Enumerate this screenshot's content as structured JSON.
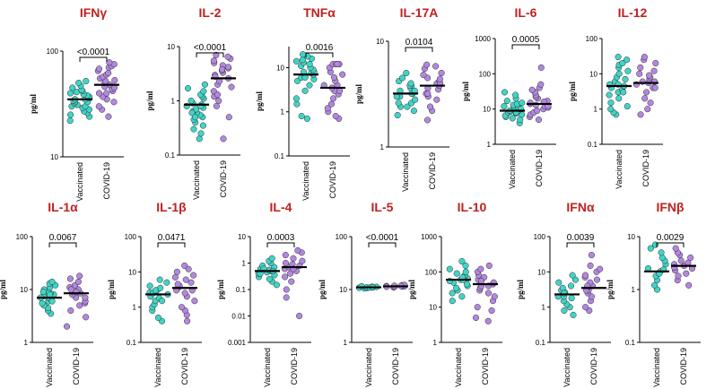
{
  "chart_data": [
    {
      "type": "scatter",
      "title": "IFNγ",
      "ylabel": "pg/ml",
      "scale": "log",
      "ylim": [
        10,
        100
      ],
      "yticks": [
        "10",
        "100"
      ],
      "categories": [
        "Vaccinated",
        "COVID-19"
      ],
      "pvalue": "<0.0001",
      "series": [
        {
          "name": "Vaccinated",
          "median": 35,
          "values": [
            22,
            24,
            25,
            26,
            27,
            28,
            29,
            30,
            30,
            31,
            32,
            33,
            33,
            34,
            35,
            35,
            36,
            37,
            38,
            39,
            40,
            41,
            42,
            43,
            45,
            47,
            50,
            52
          ]
        },
        {
          "name": "COVID-19",
          "median": 48,
          "values": [
            24,
            28,
            30,
            33,
            35,
            37,
            40,
            42,
            44,
            46,
            48,
            50,
            52,
            55,
            57,
            60,
            62,
            65,
            68,
            70,
            72,
            75,
            78,
            40,
            45,
            53
          ]
        }
      ]
    },
    {
      "type": "scatter",
      "title": "IL-2",
      "ylabel": "pg/ml",
      "scale": "log",
      "ylim": [
        0.1,
        10
      ],
      "yticks": [
        "0.1",
        "1",
        "10"
      ],
      "categories": [
        "Vaccinated",
        "COVID-19"
      ],
      "pvalue": "<0.0001",
      "series": [
        {
          "name": "Vaccinated",
          "median": 0.85,
          "values": [
            0.2,
            0.25,
            0.3,
            0.35,
            0.4,
            0.45,
            0.5,
            0.55,
            0.6,
            0.65,
            0.7,
            0.75,
            0.8,
            0.85,
            0.9,
            1.0,
            1.1,
            1.2,
            1.3,
            1.5,
            1.7,
            2.0,
            0.6,
            0.8,
            0.5
          ]
        },
        {
          "name": "COVID-19",
          "median": 2.6,
          "values": [
            0.2,
            0.5,
            0.8,
            1.0,
            1.2,
            1.5,
            1.8,
            2.0,
            2.3,
            2.6,
            3.0,
            3.3,
            3.6,
            4.0,
            4.5,
            5.0,
            5.5,
            6.0,
            6.5,
            7.0,
            1.3,
            2.8,
            3.8,
            4.2
          ]
        }
      ]
    },
    {
      "type": "scatter",
      "title": "TNFα",
      "ylabel": "pg/ml",
      "scale": "log",
      "ylim": [
        0.1,
        30
      ],
      "yticks": [
        "0.1",
        "1",
        "10"
      ],
      "categories": [
        "Vaccinated",
        "COVID-19"
      ],
      "pvalue": "0.0016",
      "series": [
        {
          "name": "Vaccinated",
          "median": 7,
          "values": [
            0.7,
            0.8,
            1.5,
            2,
            3,
            4,
            5,
            5.5,
            6,
            6.5,
            7,
            7.5,
            8,
            9,
            10,
            11,
            12,
            13,
            14,
            15,
            16,
            18,
            20,
            6,
            8
          ]
        },
        {
          "name": "COVID-19",
          "median": 3.5,
          "values": [
            0.7,
            0.8,
            1,
            1.2,
            1.5,
            2,
            2.5,
            3,
            3.5,
            4,
            5,
            6,
            7,
            8,
            10,
            12,
            12,
            12,
            12,
            3,
            4
          ]
        }
      ]
    },
    {
      "type": "scatter",
      "title": "IL-17A",
      "ylabel": "pg/ml",
      "scale": "log",
      "ylim": [
        1,
        10
      ],
      "yticks": [
        "1",
        "10"
      ],
      "categories": [
        "Vaccinated",
        "COVID-19"
      ],
      "pvalue": "0.0104",
      "series": [
        {
          "name": "Vaccinated",
          "median": 3.2,
          "values": [
            2.0,
            2.2,
            2.4,
            2.4,
            2.6,
            2.8,
            3.0,
            3.0,
            3.2,
            3.2,
            3.4,
            3.6,
            3.8,
            3.8,
            4.0,
            4.2,
            4.5,
            5.0,
            2.6,
            3.4
          ]
        },
        {
          "name": "COVID-19",
          "median": 3.8,
          "values": [
            1.8,
            2.2,
            2.4,
            2.8,
            3.0,
            3.2,
            3.5,
            3.6,
            3.8,
            4.0,
            4.2,
            4.5,
            4.8,
            5.0,
            5.5,
            5.8,
            6.0,
            3.2,
            4.0,
            4.4
          ]
        }
      ]
    },
    {
      "type": "scatter",
      "title": "IL-6",
      "ylabel": "pg/ml",
      "scale": "log",
      "ylim": [
        1,
        1000
      ],
      "yticks": [
        "1",
        "10",
        "100",
        "1000"
      ],
      "categories": [
        "Vaccinated",
        "COVID-19"
      ],
      "pvalue": "0.0005",
      "series": [
        {
          "name": "Vaccinated",
          "median": 9,
          "values": [
            4,
            5,
            5.5,
            6,
            6.5,
            7,
            7.5,
            8,
            8.5,
            9,
            9.5,
            10,
            11,
            12,
            13,
            14,
            15,
            17,
            20,
            25,
            30,
            9,
            8,
            10
          ]
        },
        {
          "name": "COVID-19",
          "median": 14,
          "values": [
            5,
            6,
            7,
            8,
            9,
            10,
            11,
            12,
            13,
            14,
            15,
            17,
            20,
            22,
            25,
            30,
            35,
            40,
            50,
            150,
            12,
            16
          ]
        }
      ]
    },
    {
      "type": "scatter",
      "title": "IL-12",
      "ylabel": "pg/ml",
      "scale": "log",
      "ylim": [
        0.1,
        100
      ],
      "yticks": [
        "0.1",
        "1",
        "10",
        "100"
      ],
      "categories": [
        "Vaccinated",
        "COVID-19"
      ],
      "pvalue": "",
      "series": [
        {
          "name": "Vaccinated",
          "median": 4.5,
          "values": [
            0.7,
            0.8,
            1,
            1.2,
            1.5,
            2,
            2.5,
            3,
            3.5,
            4,
            4.5,
            5,
            6,
            8,
            10,
            12,
            15,
            18,
            20,
            25,
            30,
            3,
            5,
            7
          ]
        },
        {
          "name": "COVID-19",
          "median": 5.5,
          "values": [
            0.7,
            1,
            1.5,
            2,
            3,
            4,
            5,
            5.5,
            6,
            7,
            8,
            10,
            12,
            15,
            20,
            25,
            30,
            4,
            6,
            9
          ]
        }
      ]
    },
    {
      "type": "scatter",
      "title": "IL-1α",
      "ylabel": "pg/ml",
      "scale": "log",
      "ylim": [
        1,
        100
      ],
      "yticks": [
        "1",
        "10",
        "100"
      ],
      "categories": [
        "Vaccinated",
        "COVID-19"
      ],
      "pvalue": "0.0067",
      "series": [
        {
          "name": "Vaccinated",
          "median": 7,
          "values": [
            3.5,
            4,
            4.5,
            5,
            5.5,
            6,
            6.5,
            7,
            7.5,
            8,
            8.5,
            9,
            10,
            11,
            12,
            13,
            14,
            6,
            7,
            8,
            9
          ]
        },
        {
          "name": "COVID-19",
          "median": 8.5,
          "values": [
            2,
            3,
            4,
            5,
            5.5,
            6,
            7,
            8,
            8.5,
            9,
            10,
            11,
            12,
            14,
            16,
            18,
            7,
            9,
            10
          ]
        }
      ]
    },
    {
      "type": "scatter",
      "title": "IL-1β",
      "ylabel": "pg/ml",
      "scale": "log",
      "ylim": [
        0.1,
        100
      ],
      "yticks": [
        "0.1",
        "1",
        "10",
        "100"
      ],
      "categories": [
        "Vaccinated",
        "COVID-19"
      ],
      "pvalue": "0.0471",
      "series": [
        {
          "name": "Vaccinated",
          "median": 2.3,
          "values": [
            0.4,
            0.5,
            0.8,
            1,
            1.2,
            1.5,
            1.8,
            2,
            2.3,
            2.6,
            3,
            3.5,
            4,
            5,
            6,
            1.5,
            2.5,
            3
          ]
        },
        {
          "name": "COVID-19",
          "median": 3.5,
          "values": [
            0.4,
            0.6,
            0.8,
            1,
            1.5,
            2,
            2.5,
            3,
            3.5,
            4,
            5,
            6,
            7,
            8,
            10,
            12,
            15,
            3,
            4.5
          ]
        }
      ]
    },
    {
      "type": "scatter",
      "title": "IL-4",
      "ylabel": "pg/ml",
      "scale": "log",
      "ylim": [
        0.001,
        10
      ],
      "yticks": [
        "0.001",
        "0.01",
        "0.1",
        "1",
        "10"
      ],
      "categories": [
        "Vaccinated",
        "COVID-19"
      ],
      "pvalue": "0.0003",
      "series": [
        {
          "name": "Vaccinated",
          "median": 0.5,
          "values": [
            0.15,
            0.2,
            0.25,
            0.3,
            0.35,
            0.4,
            0.45,
            0.5,
            0.55,
            0.6,
            0.7,
            0.8,
            1.0,
            1.2,
            1.5,
            0.5,
            0.6,
            0.4
          ]
        },
        {
          "name": "COVID-19",
          "median": 0.7,
          "values": [
            0.01,
            0.05,
            0.1,
            0.2,
            0.3,
            0.4,
            0.5,
            0.6,
            0.7,
            0.8,
            1,
            1.2,
            1.5,
            2,
            2.5,
            3,
            0.9,
            0.6
          ]
        }
      ]
    },
    {
      "type": "scatter",
      "title": "IL-5",
      "ylabel": "pg/ml",
      "scale": "log",
      "ylim": [
        1,
        100
      ],
      "yticks": [
        "1",
        "10",
        "100"
      ],
      "categories": [
        "Vaccinated",
        "COVID-19"
      ],
      "pvalue": "<0.0001",
      "series": [
        {
          "name": "Vaccinated",
          "median": 11,
          "values": [
            10.5,
            10.7,
            10.8,
            11,
            11,
            11.2,
            11.3,
            11.5,
            10.9,
            11.1
          ]
        },
        {
          "name": "COVID-19",
          "median": 11.5,
          "values": [
            11,
            11.2,
            11.4,
            11.5,
            11.6,
            11.8,
            12,
            12.2,
            11.3,
            11.7
          ]
        }
      ]
    },
    {
      "type": "scatter",
      "title": "IL-10",
      "ylabel": "pg/ml",
      "scale": "log",
      "ylim": [
        1,
        1000
      ],
      "yticks": [
        "1",
        "10",
        "100",
        "1000"
      ],
      "categories": [
        "Vaccinated",
        "COVID-19"
      ],
      "pvalue": "",
      "series": [
        {
          "name": "Vaccinated",
          "median": 60,
          "values": [
            15,
            20,
            25,
            30,
            35,
            40,
            45,
            50,
            55,
            60,
            65,
            70,
            80,
            90,
            100,
            120,
            150,
            200,
            60,
            70
          ]
        },
        {
          "name": "COVID-19",
          "median": 45,
          "values": [
            4,
            5,
            8,
            10,
            15,
            20,
            25,
            30,
            35,
            40,
            45,
            50,
            60,
            70,
            80,
            100,
            120,
            150,
            40,
            55
          ]
        }
      ]
    },
    {
      "type": "scatter",
      "title": "IFNα",
      "ylabel": "pg/ml",
      "scale": "log",
      "ylim": [
        0.1,
        100
      ],
      "yticks": [
        "0.1",
        "1",
        "10",
        "100"
      ],
      "categories": [
        "Vaccinated",
        "COVID-19"
      ],
      "pvalue": "0.0039",
      "series": [
        {
          "name": "Vaccinated",
          "median": 2.3,
          "values": [
            0.6,
            0.8,
            1,
            1.2,
            1.5,
            1.8,
            2,
            2.3,
            2.6,
            3,
            3.5,
            4,
            5,
            6,
            8,
            2,
            2.5
          ]
        },
        {
          "name": "COVID-19",
          "median": 3.5,
          "values": [
            0.8,
            1,
            1.5,
            2,
            2.5,
            3,
            3.5,
            4,
            5,
            6,
            7,
            8,
            10,
            12,
            15,
            30,
            4,
            3
          ]
        }
      ]
    },
    {
      "type": "scatter",
      "title": "IFNβ",
      "ylabel": "pg/ml",
      "scale": "log",
      "ylim": [
        0.1,
        10
      ],
      "yticks": [
        "0.1",
        "1",
        "10"
      ],
      "categories": [
        "Vaccinated",
        "COVID-19"
      ],
      "pvalue": "0.0029",
      "series": [
        {
          "name": "Vaccinated",
          "median": 2.2,
          "values": [
            1.0,
            1.2,
            1.5,
            1.8,
            2,
            2.2,
            2.5,
            3,
            3.5,
            4,
            5,
            6,
            7,
            2,
            2.4
          ]
        },
        {
          "name": "COVID-19",
          "median": 2.8,
          "values": [
            1.2,
            1.5,
            1.8,
            2,
            2.3,
            2.5,
            2.8,
            3,
            3.5,
            4,
            4.5,
            5,
            6,
            2.6,
            3.2
          ]
        }
      ]
    }
  ],
  "style": {
    "vaccinated_color": "#40d4c6",
    "covid_color": "#b387e0",
    "title_color": "#c0211f"
  }
}
